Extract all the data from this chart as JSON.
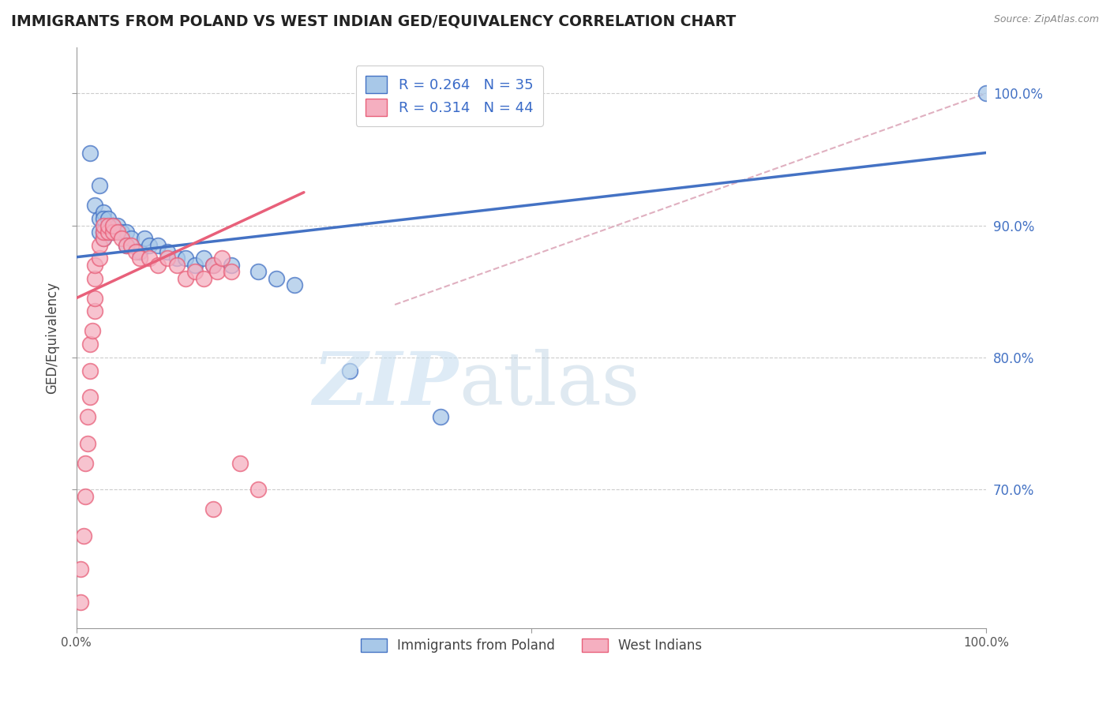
{
  "title": "IMMIGRANTS FROM POLAND VS WEST INDIAN GED/EQUIVALENCY CORRELATION CHART",
  "source": "Source: ZipAtlas.com",
  "ylabel": "GED/Equivalency",
  "xlim": [
    0.0,
    1.0
  ],
  "ylim": [
    0.595,
    1.035
  ],
  "yticks": [
    0.7,
    0.8,
    0.9,
    1.0
  ],
  "right_ytick_labels": [
    "70.0%",
    "80.0%",
    "90.0%",
    "100.0%"
  ],
  "legend_r1": "R = 0.264",
  "legend_n1": "N = 35",
  "legend_r2": "R = 0.314",
  "legend_n2": "N = 44",
  "color_blue": "#a8c8e8",
  "color_pink": "#f5afc0",
  "line_blue": "#4472c4",
  "line_pink": "#e8607a",
  "line_dashed_color": "#e0b0c0",
  "blue_points": [
    [
      0.015,
      0.955
    ],
    [
      0.02,
      0.915
    ],
    [
      0.025,
      0.93
    ],
    [
      0.025,
      0.905
    ],
    [
      0.025,
      0.895
    ],
    [
      0.03,
      0.91
    ],
    [
      0.03,
      0.905
    ],
    [
      0.03,
      0.895
    ],
    [
      0.03,
      0.89
    ],
    [
      0.035,
      0.905
    ],
    [
      0.035,
      0.895
    ],
    [
      0.04,
      0.9
    ],
    [
      0.04,
      0.895
    ],
    [
      0.045,
      0.9
    ],
    [
      0.05,
      0.895
    ],
    [
      0.055,
      0.895
    ],
    [
      0.055,
      0.885
    ],
    [
      0.06,
      0.89
    ],
    [
      0.07,
      0.88
    ],
    [
      0.075,
      0.89
    ],
    [
      0.08,
      0.885
    ],
    [
      0.09,
      0.885
    ],
    [
      0.1,
      0.88
    ],
    [
      0.11,
      0.875
    ],
    [
      0.12,
      0.875
    ],
    [
      0.13,
      0.87
    ],
    [
      0.14,
      0.875
    ],
    [
      0.15,
      0.87
    ],
    [
      0.17,
      0.87
    ],
    [
      0.2,
      0.865
    ],
    [
      0.22,
      0.86
    ],
    [
      0.24,
      0.855
    ],
    [
      0.3,
      0.79
    ],
    [
      0.4,
      0.755
    ],
    [
      1.0,
      1.0
    ]
  ],
  "pink_points": [
    [
      0.005,
      0.615
    ],
    [
      0.005,
      0.64
    ],
    [
      0.008,
      0.665
    ],
    [
      0.01,
      0.695
    ],
    [
      0.01,
      0.72
    ],
    [
      0.012,
      0.735
    ],
    [
      0.012,
      0.755
    ],
    [
      0.015,
      0.77
    ],
    [
      0.015,
      0.79
    ],
    [
      0.015,
      0.81
    ],
    [
      0.018,
      0.82
    ],
    [
      0.02,
      0.835
    ],
    [
      0.02,
      0.845
    ],
    [
      0.02,
      0.86
    ],
    [
      0.02,
      0.87
    ],
    [
      0.025,
      0.875
    ],
    [
      0.025,
      0.885
    ],
    [
      0.03,
      0.89
    ],
    [
      0.03,
      0.895
    ],
    [
      0.03,
      0.9
    ],
    [
      0.035,
      0.895
    ],
    [
      0.035,
      0.9
    ],
    [
      0.04,
      0.895
    ],
    [
      0.04,
      0.9
    ],
    [
      0.045,
      0.895
    ],
    [
      0.05,
      0.89
    ],
    [
      0.055,
      0.885
    ],
    [
      0.06,
      0.885
    ],
    [
      0.065,
      0.88
    ],
    [
      0.07,
      0.875
    ],
    [
      0.08,
      0.875
    ],
    [
      0.09,
      0.87
    ],
    [
      0.1,
      0.875
    ],
    [
      0.11,
      0.87
    ],
    [
      0.12,
      0.86
    ],
    [
      0.13,
      0.865
    ],
    [
      0.14,
      0.86
    ],
    [
      0.15,
      0.87
    ],
    [
      0.155,
      0.865
    ],
    [
      0.16,
      0.875
    ],
    [
      0.17,
      0.865
    ],
    [
      0.18,
      0.72
    ],
    [
      0.2,
      0.7
    ],
    [
      0.15,
      0.685
    ]
  ],
  "blue_line_x": [
    0.0,
    1.0
  ],
  "blue_line_y": [
    0.876,
    0.955
  ],
  "pink_line_x": [
    0.0,
    0.25
  ],
  "pink_line_y": [
    0.845,
    0.925
  ],
  "dashed_line_x": [
    0.35,
    1.0
  ],
  "dashed_line_y": [
    0.84,
    1.0
  ]
}
